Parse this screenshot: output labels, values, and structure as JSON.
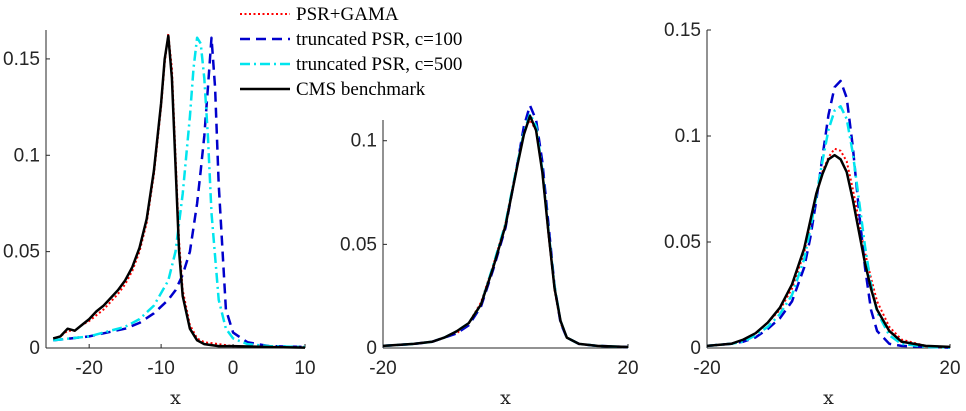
{
  "legend": {
    "entries": [
      {
        "label": "PSR+GAMA",
        "color": "#ff0000",
        "dash": "2,2.5",
        "width": 2
      },
      {
        "label": "truncated PSR, c=100",
        "color": "#0000cc",
        "dash": "10,6",
        "width": 2.5
      },
      {
        "label": "truncated PSR, c=500",
        "color": "#00e5ee",
        "dash": "10,4,2,4",
        "width": 2.5
      },
      {
        "label": "CMS benchmark",
        "color": "#000000",
        "dash": "",
        "width": 2.5
      }
    ]
  },
  "chart_data": [
    {
      "type": "line",
      "title": "",
      "xlabel": "x",
      "ylabel": "",
      "xlim": [
        -26,
        10
      ],
      "ylim": [
        0,
        0.165
      ],
      "xticks": [
        -20,
        -10,
        0,
        10
      ],
      "yticks": [
        0,
        0.05,
        0.1,
        0.15
      ],
      "xticklabels": [
        "-20",
        "-10",
        "0",
        "10"
      ],
      "yticklabels": [
        "0",
        "0.05",
        "0.1",
        "0.15"
      ],
      "series": [
        {
          "name": "PSR+GAMA",
          "x": [
            -25,
            -24,
            -23,
            -22,
            -21,
            -20,
            -19,
            -18,
            -17,
            -16,
            -15,
            -14,
            -13,
            -12,
            -11,
            -10,
            -9.5,
            -9,
            -8.5,
            -8,
            -7.5,
            -7,
            -6,
            -5,
            -4,
            -2,
            0,
            5,
            10
          ],
          "y": [
            0.005,
            0.006,
            0.009,
            0.009,
            0.012,
            0.014,
            0.017,
            0.02,
            0.024,
            0.028,
            0.033,
            0.04,
            0.05,
            0.065,
            0.09,
            0.125,
            0.148,
            0.163,
            0.145,
            0.1,
            0.055,
            0.03,
            0.012,
            0.005,
            0.003,
            0.002,
            0.001,
            0.0005,
            0.0002
          ]
        },
        {
          "name": "truncated PSR, c=100",
          "x": [
            -25,
            -20,
            -15,
            -13,
            -11,
            -9,
            -8,
            -7,
            -6,
            -5,
            -4.5,
            -4,
            -3.5,
            -3,
            -2.5,
            -2,
            -1,
            0,
            2,
            5,
            10
          ],
          "y": [
            0.004,
            0.006,
            0.01,
            0.013,
            0.018,
            0.025,
            0.03,
            0.038,
            0.05,
            0.075,
            0.092,
            0.11,
            0.135,
            0.161,
            0.135,
            0.085,
            0.02,
            0.008,
            0.003,
            0.001,
            0.0005
          ]
        },
        {
          "name": "truncated PSR, c=500",
          "x": [
            -25,
            -20,
            -15,
            -13,
            -11,
            -9,
            -8,
            -7,
            -6,
            -5.5,
            -5,
            -4.5,
            -4,
            -3.5,
            -3,
            -2,
            -1,
            0,
            2,
            5,
            10
          ],
          "y": [
            0.004,
            0.006,
            0.011,
            0.015,
            0.022,
            0.035,
            0.05,
            0.08,
            0.12,
            0.145,
            0.161,
            0.158,
            0.14,
            0.11,
            0.07,
            0.025,
            0.01,
            0.005,
            0.002,
            0.001,
            0.0005
          ]
        },
        {
          "name": "CMS benchmark",
          "x": [
            -25,
            -24,
            -23,
            -22,
            -21,
            -20,
            -19,
            -18,
            -17,
            -16,
            -15,
            -14,
            -13,
            -12,
            -11,
            -10,
            -9.5,
            -9,
            -8.5,
            -8,
            -7.5,
            -7,
            -6,
            -5,
            -4,
            -2,
            0,
            5,
            10
          ],
          "y": [
            0.005,
            0.006,
            0.01,
            0.009,
            0.012,
            0.015,
            0.019,
            0.022,
            0.026,
            0.03,
            0.035,
            0.042,
            0.052,
            0.067,
            0.092,
            0.127,
            0.15,
            0.162,
            0.14,
            0.095,
            0.05,
            0.027,
            0.01,
            0.004,
            0.002,
            0.001,
            0.001,
            0.0005,
            0.0002
          ]
        }
      ]
    },
    {
      "type": "line",
      "title": "",
      "xlabel": "x",
      "ylabel": "",
      "xlim": [
        -20,
        20
      ],
      "ylim": [
        0,
        0.11
      ],
      "xticks": [
        -20,
        20
      ],
      "yticks": [
        0,
        0.05,
        0.1
      ],
      "xticklabels": [
        "-20",
        "20"
      ],
      "yticklabels": [
        "0",
        "0.05",
        "0.1"
      ],
      "series": [
        {
          "name": "PSR+GAMA",
          "x": [
            -20,
            -15,
            -12,
            -10,
            -8,
            -6,
            -4,
            -2,
            0,
            1,
            2,
            3,
            4,
            5,
            6,
            7,
            8,
            9,
            10,
            12,
            15,
            20
          ],
          "y": [
            0.001,
            0.002,
            0.003,
            0.005,
            0.007,
            0.012,
            0.022,
            0.04,
            0.06,
            0.075,
            0.09,
            0.105,
            0.11,
            0.105,
            0.085,
            0.055,
            0.028,
            0.012,
            0.005,
            0.002,
            0.001,
            0.0005
          ]
        },
        {
          "name": "truncated PSR, c=100",
          "x": [
            -20,
            -15,
            -12,
            -10,
            -8,
            -6,
            -4,
            -2,
            0,
            1,
            2,
            3,
            4,
            5,
            6,
            7,
            8,
            9,
            10,
            12,
            15,
            20
          ],
          "y": [
            0.001,
            0.002,
            0.003,
            0.005,
            0.007,
            0.011,
            0.02,
            0.038,
            0.058,
            0.074,
            0.09,
            0.107,
            0.117,
            0.11,
            0.09,
            0.06,
            0.03,
            0.012,
            0.005,
            0.002,
            0.001,
            0.0005
          ]
        },
        {
          "name": "truncated PSR, c=500",
          "x": [
            -20,
            -15,
            -12,
            -10,
            -8,
            -6,
            -4,
            -2,
            0,
            1,
            2,
            3,
            4,
            5,
            6,
            7,
            8,
            9,
            10,
            12,
            15,
            20
          ],
          "y": [
            0.001,
            0.002,
            0.003,
            0.005,
            0.008,
            0.012,
            0.021,
            0.04,
            0.06,
            0.075,
            0.09,
            0.104,
            0.113,
            0.107,
            0.086,
            0.057,
            0.03,
            0.013,
            0.005,
            0.002,
            0.001,
            0.0005
          ]
        },
        {
          "name": "CMS benchmark",
          "x": [
            -20,
            -15,
            -12,
            -10,
            -8,
            -6,
            -4,
            -2,
            0,
            1,
            2,
            3,
            4,
            5,
            6,
            7,
            8,
            9,
            10,
            12,
            15,
            20
          ],
          "y": [
            0.001,
            0.002,
            0.003,
            0.005,
            0.008,
            0.012,
            0.021,
            0.039,
            0.059,
            0.074,
            0.089,
            0.103,
            0.112,
            0.105,
            0.085,
            0.056,
            0.029,
            0.013,
            0.005,
            0.002,
            0.001,
            0.0005
          ]
        }
      ]
    },
    {
      "type": "line",
      "title": "",
      "xlabel": "x",
      "ylabel": "",
      "xlim": [
        -20,
        20
      ],
      "ylim": [
        0,
        0.15
      ],
      "xticks": [
        -20,
        20
      ],
      "yticks": [
        0,
        0.05,
        0.1,
        0.15
      ],
      "xticklabels": [
        "-20",
        "20"
      ],
      "yticklabels": [
        "0",
        "0.05",
        "0.1",
        "0.15"
      ],
      "series": [
        {
          "name": "PSR+GAMA",
          "x": [
            -20,
            -16,
            -14,
            -12,
            -10,
            -8,
            -6,
            -4,
            -3,
            -2,
            -1,
            0,
            1,
            2,
            3,
            4,
            5,
            6,
            7,
            8,
            10,
            12,
            16,
            20
          ],
          "y": [
            0.001,
            0.002,
            0.004,
            0.007,
            0.012,
            0.018,
            0.028,
            0.045,
            0.058,
            0.072,
            0.083,
            0.09,
            0.094,
            0.093,
            0.088,
            0.075,
            0.06,
            0.045,
            0.033,
            0.022,
            0.01,
            0.004,
            0.001,
            0.0005
          ]
        },
        {
          "name": "truncated PSR, c=100",
          "x": [
            -20,
            -16,
            -14,
            -12,
            -10,
            -8,
            -6,
            -4,
            -3,
            -2,
            -1,
            0,
            1,
            2,
            3,
            4,
            5,
            6,
            7,
            8,
            10,
            12,
            16,
            20
          ],
          "y": [
            0.001,
            0.002,
            0.003,
            0.005,
            0.009,
            0.014,
            0.022,
            0.038,
            0.052,
            0.07,
            0.09,
            0.11,
            0.123,
            0.126,
            0.118,
            0.095,
            0.065,
            0.038,
            0.018,
            0.008,
            0.002,
            0.001,
            0.0005,
            0.0002
          ]
        },
        {
          "name": "truncated PSR, c=500",
          "x": [
            -20,
            -16,
            -14,
            -12,
            -10,
            -8,
            -6,
            -4,
            -3,
            -2,
            -1,
            0,
            1,
            2,
            3,
            4,
            5,
            6,
            7,
            8,
            10,
            12,
            16,
            20
          ],
          "y": [
            0.001,
            0.002,
            0.003,
            0.006,
            0.01,
            0.016,
            0.025,
            0.042,
            0.056,
            0.072,
            0.088,
            0.103,
            0.112,
            0.114,
            0.108,
            0.092,
            0.07,
            0.048,
            0.03,
            0.017,
            0.006,
            0.002,
            0.0005,
            0.0002
          ]
        },
        {
          "name": "CMS benchmark",
          "x": [
            -20,
            -16,
            -14,
            -12,
            -10,
            -8,
            -6,
            -4,
            -3,
            -2,
            -1,
            0,
            1,
            2,
            3,
            4,
            5,
            6,
            7,
            8,
            10,
            12,
            16,
            20
          ],
          "y": [
            0.001,
            0.002,
            0.004,
            0.007,
            0.012,
            0.019,
            0.03,
            0.047,
            0.06,
            0.073,
            0.082,
            0.089,
            0.091,
            0.089,
            0.083,
            0.07,
            0.055,
            0.04,
            0.028,
            0.018,
            0.008,
            0.003,
            0.001,
            0.0005
          ]
        }
      ]
    }
  ]
}
